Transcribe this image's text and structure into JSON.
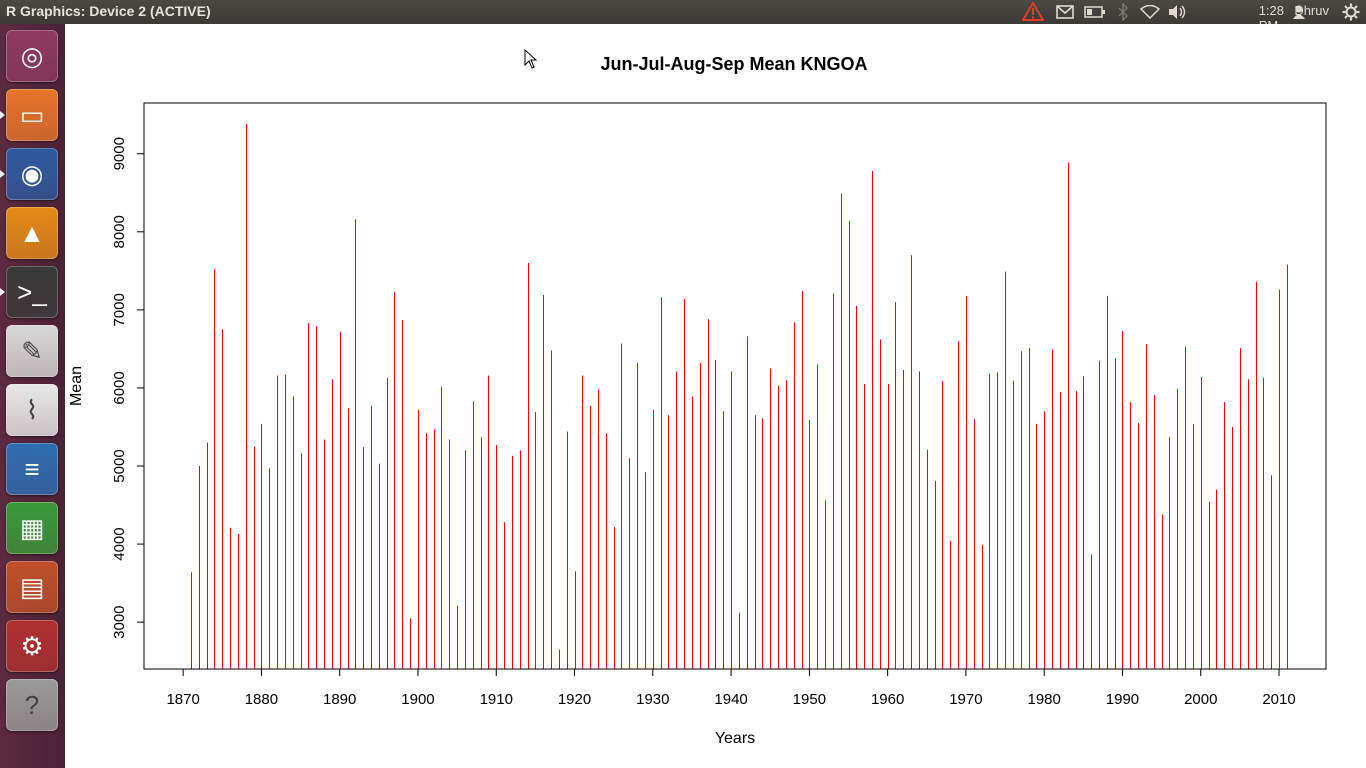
{
  "topbar": {
    "window_title": "R Graphics: Device 2 (ACTIVE)",
    "time": "1:28 PM",
    "user": "Dhruv",
    "icons": [
      "warning-icon",
      "mail-icon",
      "battery-icon",
      "bluetooth-icon",
      "wifi-icon",
      "volume-icon",
      "user-icon",
      "gear-icon"
    ]
  },
  "launcher": {
    "apps": [
      {
        "name": "Dash Home",
        "icon": "ubuntu-logo-icon",
        "color": "#8e3a5e"
      },
      {
        "name": "Files",
        "icon": "folder-icon",
        "color": "#e8742a"
      },
      {
        "name": "Firefox",
        "icon": "firefox-icon",
        "color": "#2d5a9e"
      },
      {
        "name": "VLC",
        "icon": "vlc-icon",
        "color": "#e58a16"
      },
      {
        "name": "Terminal",
        "icon": "terminal-icon",
        "color": "#3a3a3a"
      },
      {
        "name": "Text Editor",
        "icon": "text-editor-icon",
        "color": "#d8d8d8"
      },
      {
        "name": "Document Viewer",
        "icon": "pdf-icon",
        "color": "#e8e8e8"
      },
      {
        "name": "Writer",
        "icon": "writer-icon",
        "color": "#2f6db4"
      },
      {
        "name": "Calc",
        "icon": "calc-icon",
        "color": "#3a9a3a"
      },
      {
        "name": "Impress",
        "icon": "impress-icon",
        "color": "#c0502a"
      },
      {
        "name": "System Settings",
        "icon": "settings-icon",
        "color": "#b03030"
      },
      {
        "name": "Unknown",
        "icon": "unknown-icon",
        "color": "#9a9a9a"
      }
    ]
  },
  "chart_data": {
    "type": "bar",
    "style": "histogram-lines",
    "title": "Jun-Jul-Aug-Sep Mean KNGOA",
    "xlabel": "Years",
    "ylabel": "Mean",
    "line_color": "#ff0000",
    "xlim": [
      1865,
      2016
    ],
    "ylim": [
      2400,
      9650
    ],
    "x_ticks": [
      1870,
      1880,
      1890,
      1900,
      1910,
      1920,
      1930,
      1940,
      1950,
      1960,
      1970,
      1980,
      1990,
      2000,
      2010
    ],
    "y_ticks": [
      3000,
      4000,
      5000,
      6000,
      7000,
      8000,
      9000
    ],
    "x": [
      1871,
      1872,
      1873,
      1874,
      1875,
      1876,
      1877,
      1878,
      1879,
      1880,
      1881,
      1882,
      1883,
      1884,
      1885,
      1886,
      1887,
      1888,
      1889,
      1890,
      1891,
      1892,
      1893,
      1894,
      1895,
      1896,
      1897,
      1898,
      1899,
      1900,
      1901,
      1902,
      1903,
      1904,
      1905,
      1906,
      1907,
      1908,
      1909,
      1910,
      1911,
      1912,
      1913,
      1914,
      1915,
      1916,
      1917,
      1918,
      1919,
      1920,
      1921,
      1922,
      1923,
      1924,
      1925,
      1926,
      1927,
      1928,
      1929,
      1930,
      1931,
      1932,
      1933,
      1934,
      1935,
      1936,
      1937,
      1938,
      1939,
      1940,
      1941,
      1942,
      1943,
      1944,
      1945,
      1946,
      1947,
      1948,
      1949,
      1950,
      1951,
      1952,
      1953,
      1954,
      1955,
      1956,
      1957,
      1958,
      1959,
      1960,
      1961,
      1962,
      1963,
      1964,
      1965,
      1966,
      1967,
      1968,
      1969,
      1970,
      1971,
      1972,
      1973,
      1974,
      1975,
      1976,
      1977,
      1978,
      1979,
      1980,
      1981,
      1982,
      1983,
      1984,
      1985,
      1986,
      1987,
      1988,
      1989,
      1990,
      1991,
      1992,
      1993,
      1994,
      1995,
      1996,
      1997,
      1998,
      1999,
      2000,
      2001,
      2002,
      2003,
      2004,
      2005,
      2006,
      2007,
      2008,
      2009,
      2010,
      2011
    ],
    "values": [
      3640,
      5000,
      5300,
      7520,
      6750,
      4210,
      4130,
      9380,
      5250,
      5540,
      4970,
      6160,
      6170,
      5890,
      5160,
      6830,
      6790,
      5340,
      6110,
      6720,
      5740,
      8160,
      5240,
      5770,
      5030,
      6130,
      7230,
      6870,
      3050,
      5720,
      5420,
      5470,
      6010,
      5340,
      3210,
      5200,
      5830,
      5370,
      6160,
      5270,
      4280,
      5130,
      5200,
      7600,
      5690,
      7190,
      6480,
      2650,
      5440,
      3650,
      6160,
      5770,
      5980,
      5420,
      4220,
      6570,
      5100,
      6320,
      4920,
      5720,
      7160,
      5650,
      6210,
      7140,
      5890,
      6320,
      6880,
      6360,
      5700,
      6210,
      3120,
      6660,
      5650,
      5610,
      6250,
      6030,
      6100,
      6840,
      7240,
      5590,
      6300,
      4560,
      7210,
      8490,
      8140,
      7050,
      6050,
      8780,
      6620,
      6050,
      7100,
      6230,
      7700,
      6210,
      5210,
      4810,
      6090,
      4040,
      6600,
      7180,
      5600,
      3990,
      6180,
      6200,
      7490,
      6090,
      6470,
      6510,
      5540,
      5700,
      6490,
      5950,
      8890,
      5960,
      6150,
      3870,
      6350,
      7180,
      6380,
      6730,
      5820,
      5550,
      6560,
      5910,
      4380,
      5370,
      5990,
      6530,
      5540,
      6140,
      4540,
      4700,
      5820,
      5500,
      6510,
      6110,
      7360,
      6130,
      4880,
      7260,
      7580
    ]
  }
}
